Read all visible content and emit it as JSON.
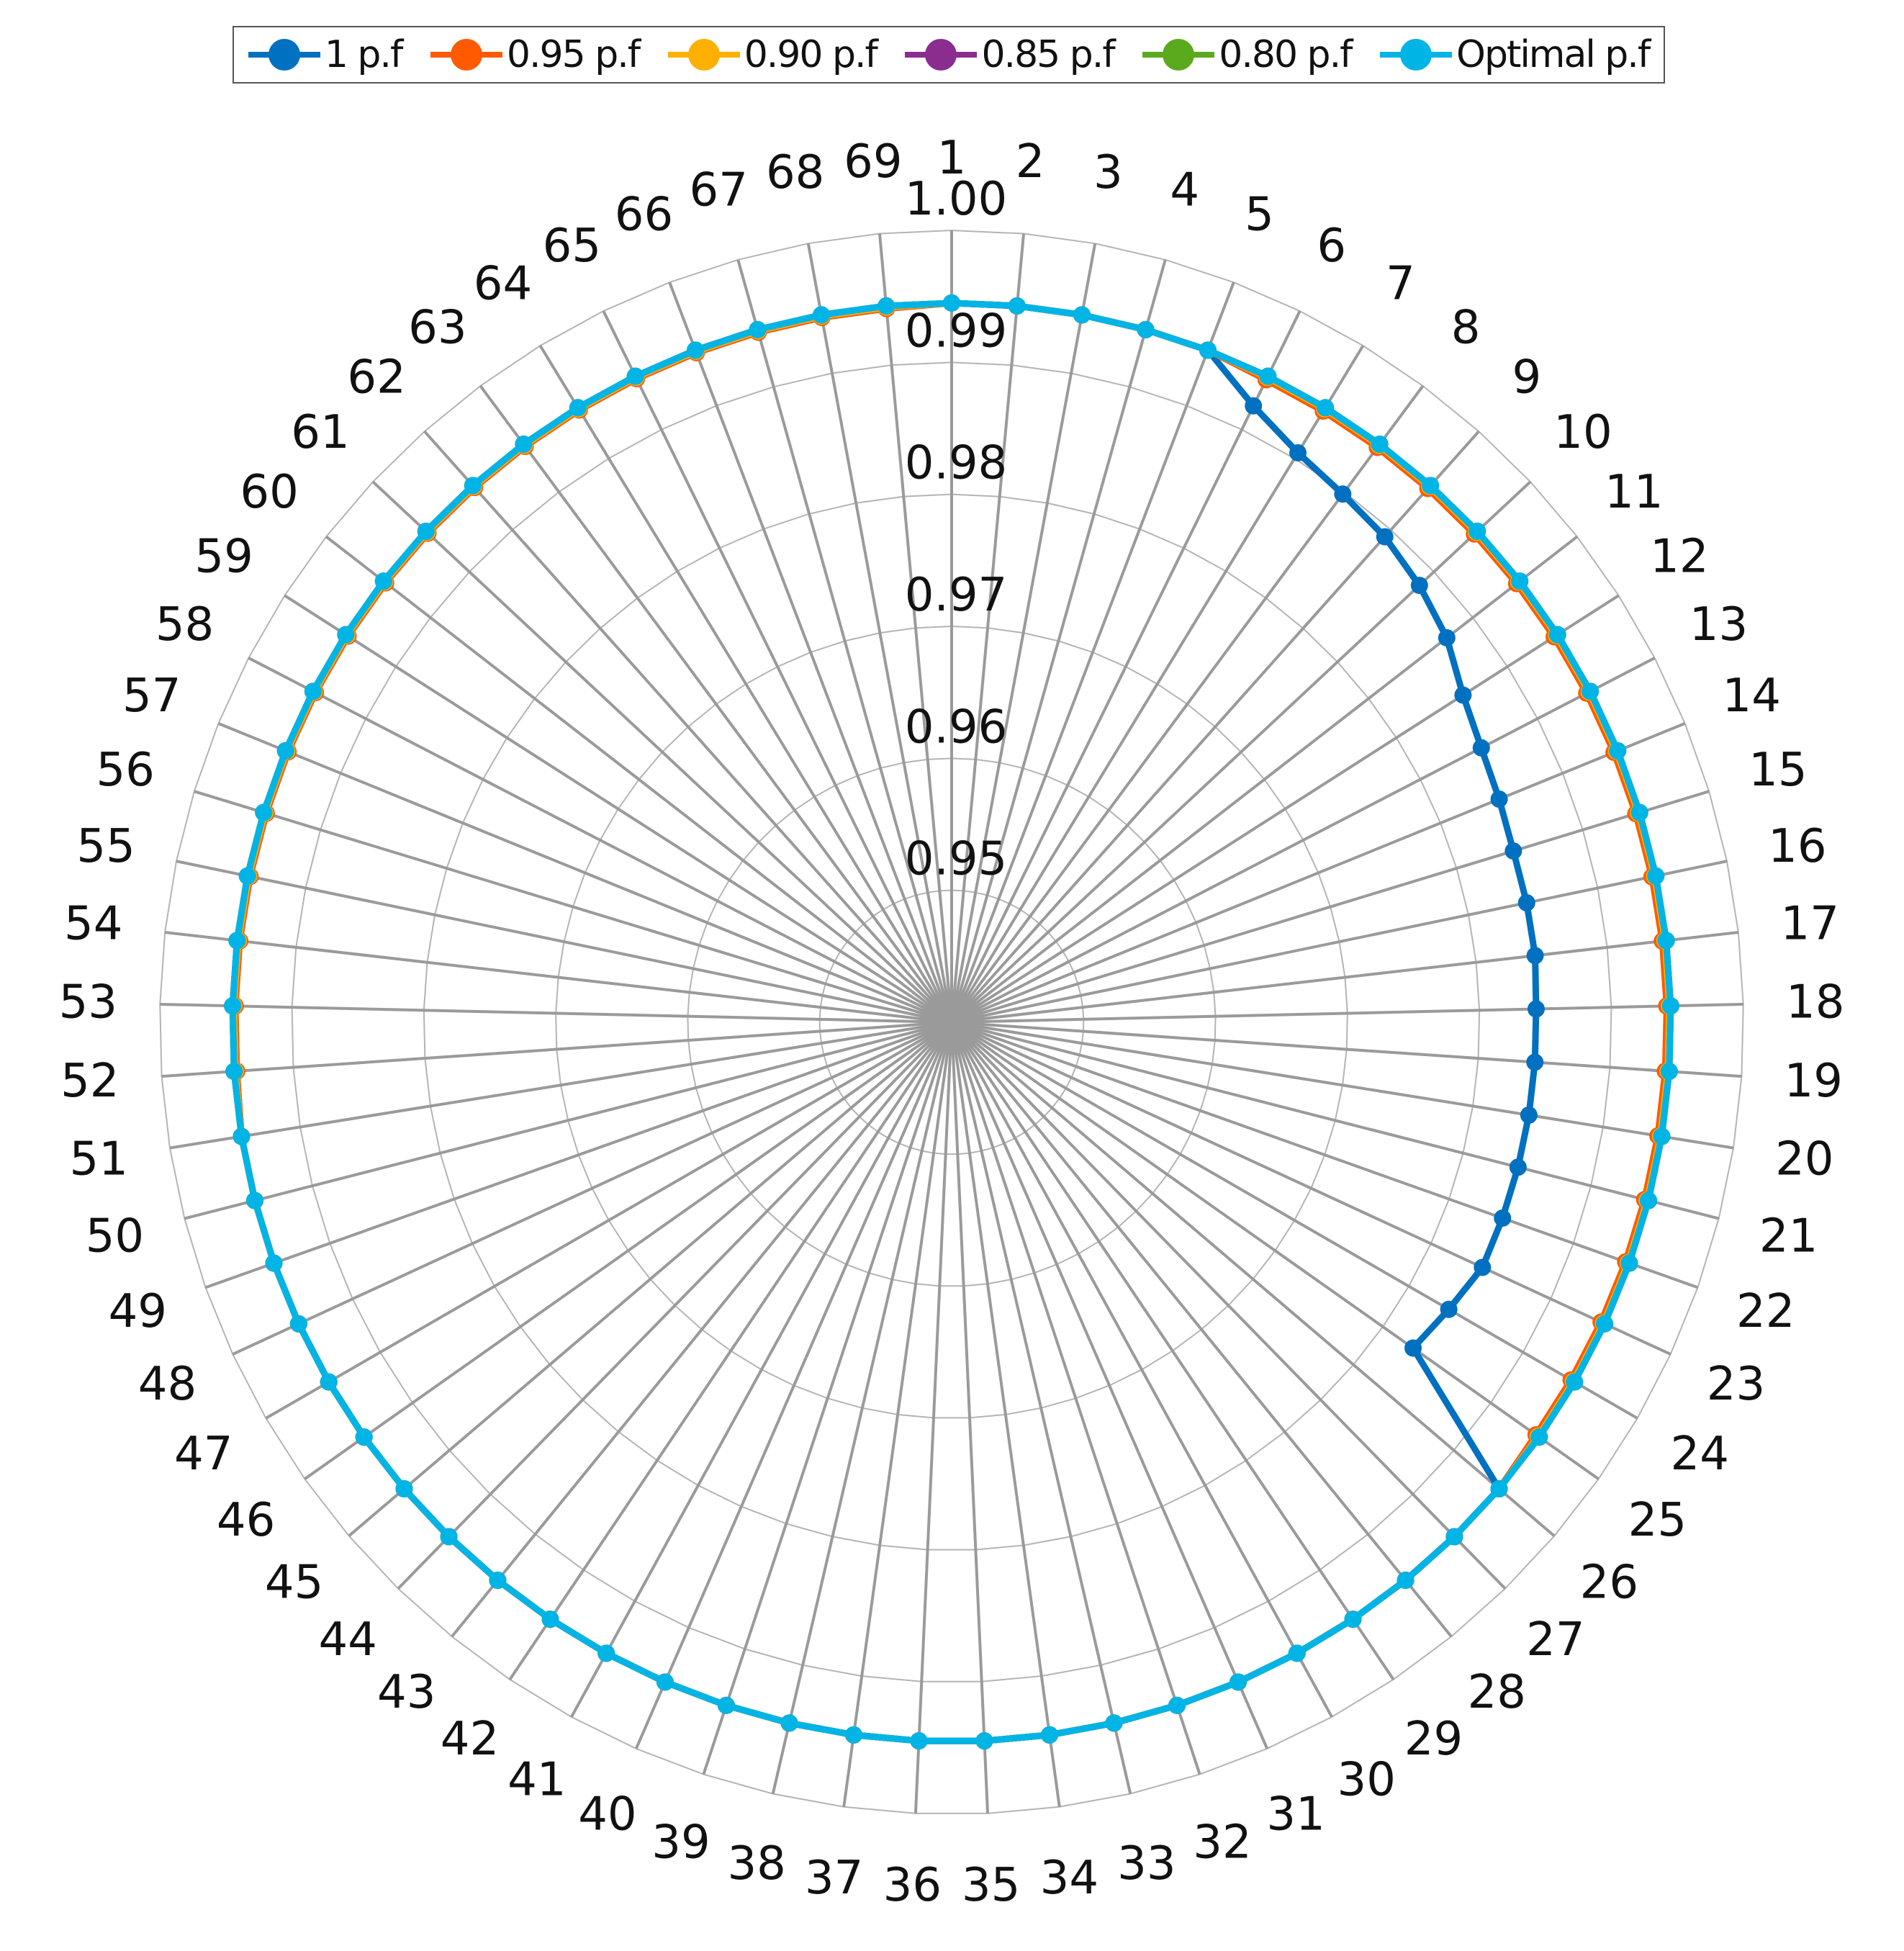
{
  "chart_data": {
    "type": "radar",
    "title": "",
    "categories": [
      "1",
      "2",
      "3",
      "4",
      "5",
      "6",
      "7",
      "8",
      "9",
      "10",
      "11",
      "12",
      "13",
      "14",
      "15",
      "16",
      "17",
      "18",
      "19",
      "20",
      "21",
      "22",
      "23",
      "24",
      "25",
      "26",
      "27",
      "28",
      "29",
      "30",
      "31",
      "32",
      "33",
      "34",
      "35",
      "36",
      "37",
      "38",
      "39",
      "40",
      "41",
      "42",
      "43",
      "44",
      "45",
      "46",
      "47",
      "48",
      "49",
      "50",
      "51",
      "52",
      "53",
      "54",
      "55",
      "56",
      "57",
      "58",
      "59",
      "60",
      "61",
      "62",
      "63",
      "64",
      "65",
      "66",
      "67",
      "68",
      "69"
    ],
    "rlim": [
      0.94,
      1.0
    ],
    "tick_values": [
      0.95,
      0.96,
      0.97,
      0.98,
      0.99,
      1.0
    ],
    "tick_labels": [
      "0.95",
      "0.96",
      "0.97",
      "0.98",
      "0.99",
      "1.00"
    ],
    "legend_position": "top",
    "series": [
      {
        "name": "1 p.f",
        "color": "#0070C0",
        "values": [
          0.9945,
          0.9945,
          0.9945,
          0.9945,
          0.9945,
          0.992,
          0.9905,
          0.9898,
          0.9893,
          0.9885,
          0.9875,
          0.986,
          0.9852,
          0.9848,
          0.9845,
          0.9845,
          0.9845,
          0.9843,
          0.9843,
          0.9843,
          0.9843,
          0.9843,
          0.9843,
          0.9835,
          0.9828,
          0.9945,
          0.9945,
          0.9945,
          0.9945,
          0.9945,
          0.9945,
          0.9945,
          0.9945,
          0.9945,
          0.9945,
          0.9945,
          0.9945,
          0.9945,
          0.9945,
          0.9945,
          0.9945,
          0.9945,
          0.9945,
          0.9945,
          0.9945,
          0.9945,
          0.9945,
          0.9945,
          0.9945,
          0.9945,
          0.9945,
          0.9943,
          0.9943,
          0.9943,
          0.9943,
          0.9943,
          0.9943,
          0.9943,
          0.9943,
          0.9943,
          0.9943,
          0.9943,
          0.9943,
          0.9943,
          0.9943,
          0.9943,
          0.9943,
          0.9943,
          0.9943
        ]
      },
      {
        "name": "0.95 p.f",
        "color": "#FF5A00",
        "values": [
          0.9945,
          0.9945,
          0.9945,
          0.9945,
          0.9945,
          0.9942,
          0.9942,
          0.9942,
          0.9942,
          0.9942,
          0.9942,
          0.9942,
          0.9942,
          0.9942,
          0.9942,
          0.9942,
          0.9942,
          0.9942,
          0.9942,
          0.9942,
          0.9942,
          0.9942,
          0.9942,
          0.9942,
          0.9942,
          0.9945,
          0.9945,
          0.9945,
          0.9945,
          0.9945,
          0.9945,
          0.9945,
          0.9945,
          0.9945,
          0.9945,
          0.9945,
          0.9945,
          0.9945,
          0.9945,
          0.9945,
          0.9945,
          0.9945,
          0.9945,
          0.9945,
          0.9945,
          0.9945,
          0.9945,
          0.9945,
          0.9945,
          0.9945,
          0.9945,
          0.9943,
          0.9943,
          0.9943,
          0.9943,
          0.9943,
          0.9943,
          0.9943,
          0.9943,
          0.9943,
          0.9943,
          0.9943,
          0.9943,
          0.9943,
          0.9943,
          0.9943,
          0.9943,
          0.9943,
          0.9943
        ]
      },
      {
        "name": "0.90 p.f",
        "color": "#FFB000",
        "values": [
          0.9945,
          0.9945,
          0.9945,
          0.9945,
          0.9945,
          0.9944,
          0.9944,
          0.9944,
          0.9944,
          0.9944,
          0.9944,
          0.9944,
          0.9944,
          0.9944,
          0.9944,
          0.9944,
          0.9944,
          0.9944,
          0.9944,
          0.9944,
          0.9944,
          0.9944,
          0.9944,
          0.9944,
          0.9944,
          0.9945,
          0.9945,
          0.9945,
          0.9945,
          0.9945,
          0.9945,
          0.9945,
          0.9945,
          0.9945,
          0.9945,
          0.9945,
          0.9945,
          0.9945,
          0.9945,
          0.9945,
          0.9945,
          0.9945,
          0.9945,
          0.9945,
          0.9945,
          0.9945,
          0.9945,
          0.9945,
          0.9945,
          0.9945,
          0.9945,
          0.9944,
          0.9944,
          0.9944,
          0.9944,
          0.9944,
          0.9944,
          0.9944,
          0.9944,
          0.9944,
          0.9944,
          0.9944,
          0.9944,
          0.9944,
          0.9944,
          0.9944,
          0.9944,
          0.9944,
          0.9944
        ]
      },
      {
        "name": "0.85 p.f",
        "color": "#8B2C8F",
        "values": [
          0.9945,
          0.9945,
          0.9945,
          0.9945,
          0.9945,
          0.9945,
          0.9945,
          0.9945,
          0.9945,
          0.9945,
          0.9945,
          0.9945,
          0.9945,
          0.9945,
          0.9945,
          0.9945,
          0.9945,
          0.9945,
          0.9945,
          0.9945,
          0.9945,
          0.9945,
          0.9945,
          0.9945,
          0.9945,
          0.9945,
          0.9945,
          0.9945,
          0.9945,
          0.9945,
          0.9945,
          0.9945,
          0.9945,
          0.9945,
          0.9945,
          0.9945,
          0.9945,
          0.9945,
          0.9945,
          0.9945,
          0.9945,
          0.9945,
          0.9945,
          0.9945,
          0.9945,
          0.9945,
          0.9945,
          0.9945,
          0.9945,
          0.9945,
          0.9945,
          0.9945,
          0.9945,
          0.9945,
          0.9945,
          0.9945,
          0.9945,
          0.9945,
          0.9945,
          0.9945,
          0.9945,
          0.9945,
          0.9945,
          0.9945,
          0.9945,
          0.9945,
          0.9945,
          0.9945,
          0.9945
        ]
      },
      {
        "name": "0.80 p.f",
        "color": "#5BAA1E",
        "values": [
          0.9945,
          0.9945,
          0.9945,
          0.9945,
          0.9945,
          0.9945,
          0.9945,
          0.9945,
          0.9945,
          0.9945,
          0.9945,
          0.9945,
          0.9945,
          0.9945,
          0.9945,
          0.9945,
          0.9945,
          0.9945,
          0.9945,
          0.9945,
          0.9945,
          0.9945,
          0.9945,
          0.9945,
          0.9945,
          0.9945,
          0.9945,
          0.9945,
          0.9945,
          0.9945,
          0.9945,
          0.9945,
          0.9945,
          0.9945,
          0.9945,
          0.9945,
          0.9945,
          0.9945,
          0.9945,
          0.9945,
          0.9945,
          0.9945,
          0.9945,
          0.9945,
          0.9945,
          0.9945,
          0.9945,
          0.9945,
          0.9945,
          0.9945,
          0.9945,
          0.9945,
          0.9945,
          0.9945,
          0.9945,
          0.9945,
          0.9945,
          0.9945,
          0.9945,
          0.9945,
          0.9945,
          0.9945,
          0.9945,
          0.9945,
          0.9945,
          0.9945,
          0.9945,
          0.9945,
          0.9945
        ]
      },
      {
        "name": "Optimal p.f",
        "color": "#00B4E6",
        "values": [
          0.9945,
          0.9945,
          0.9945,
          0.9945,
          0.9945,
          0.9945,
          0.9945,
          0.9945,
          0.9945,
          0.9945,
          0.9945,
          0.9945,
          0.9945,
          0.9945,
          0.9945,
          0.9945,
          0.9945,
          0.9945,
          0.9945,
          0.9945,
          0.9945,
          0.9945,
          0.9945,
          0.9945,
          0.9945,
          0.9945,
          0.9945,
          0.9945,
          0.9945,
          0.9945,
          0.9945,
          0.9945,
          0.9945,
          0.9945,
          0.9945,
          0.9945,
          0.9945,
          0.9945,
          0.9945,
          0.9945,
          0.9945,
          0.9945,
          0.9945,
          0.9945,
          0.9945,
          0.9945,
          0.9945,
          0.9945,
          0.9945,
          0.9945,
          0.9945,
          0.9945,
          0.9945,
          0.9945,
          0.9945,
          0.9945,
          0.9945,
          0.9945,
          0.9945,
          0.9945,
          0.9945,
          0.9945,
          0.9945,
          0.9945,
          0.9945,
          0.9945,
          0.9945,
          0.9945,
          0.9945
        ]
      }
    ]
  }
}
